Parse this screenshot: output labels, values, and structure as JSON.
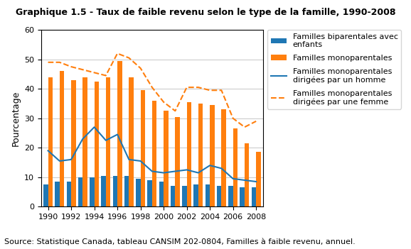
{
  "chart_data": {
    "type": "bar",
    "title": "Graphique 1.5 - Taux de faible revenu selon le type de la famille, 1990-2008",
    "y_label": "Pourcentage",
    "categories": [
      "1990",
      null,
      "1992",
      null,
      "1994",
      null,
      "1996",
      null,
      "1998",
      null,
      "2000",
      null,
      "2002",
      null,
      "2004",
      null,
      "2006",
      null,
      "2008"
    ],
    "series": [
      {
        "name": "Familles biparentales avec\nenfants",
        "type": "bar",
        "values": [
          7.5,
          8.5,
          8.5,
          10.0,
          10.0,
          10.5,
          10.5,
          10.5,
          9.5,
          9.0,
          8.5,
          7.0,
          7.0,
          7.5,
          7.5,
          7.0,
          7.0,
          6.5,
          6.5
        ]
      },
      {
        "name": "Familles monoparentales",
        "type": "bar",
        "values": [
          44.0,
          46.0,
          43.0,
          44.0,
          42.5,
          44.0,
          49.5,
          44.0,
          39.5,
          36.0,
          32.5,
          30.5,
          35.5,
          35.0,
          34.5,
          33.0,
          26.5,
          21.5,
          18.5
        ]
      },
      {
        "name": "Familles monoparentales\ndirigées par un homme",
        "type": "line",
        "line_style": "solid",
        "values": [
          19.0,
          15.5,
          16.0,
          23.0,
          27.0,
          22.5,
          24.5,
          16.0,
          15.5,
          12.0,
          11.5,
          12.0,
          12.5,
          11.5,
          14.0,
          13.0,
          9.5,
          9.0,
          8.5
        ]
      },
      {
        "name": "Familles monoparentales\ndirigées par une femme",
        "type": "line",
        "line_style": "dashed",
        "values": [
          49.0,
          49.0,
          47.5,
          46.5,
          45.5,
          44.5,
          52.0,
          50.5,
          47.0,
          40.5,
          35.5,
          32.5,
          40.5,
          40.5,
          39.5,
          39.5,
          30.0,
          27.0,
          29.0
        ]
      }
    ],
    "ylim": [
      0,
      60
    ],
    "yticks": [
      0,
      10,
      20,
      30,
      40,
      50,
      60
    ],
    "grid": true,
    "legend": "upper left",
    "annotations": [
      "Source: Statistique Canada, tableau CANSIM 202-0804, Familles à faible revenu, annuel."
    ]
  }
}
